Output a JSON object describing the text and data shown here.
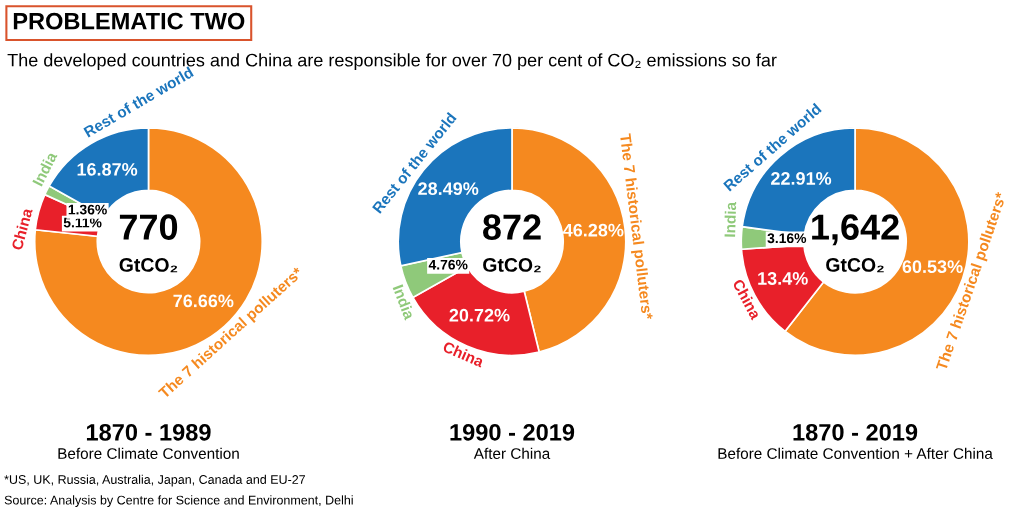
{
  "chart_data": [
    {
      "type": "other",
      "title": "PROBLEMATIC TWO",
      "subtitle": "The developed countries and China are responsible for over 70 per cent of CO₂ emissions so far",
      "annotations": [
        "*US, UK, Russia, Australia, Japan, Canada and EU-27",
        "Source: Analysis by Centre for Science and Environment, Delhi"
      ]
    },
    {
      "type": "donut",
      "title": "1870 - 1989",
      "subtitle": "Before Climate Convention",
      "annotations": [
        "770",
        "GtCO₂"
      ],
      "categories": [
        "The 7 historical polluters*",
        "China",
        "India",
        "Rest of the world"
      ],
      "values": [
        76.66,
        5.11,
        1.36,
        16.87
      ],
      "value_labels": [
        "76.66%",
        "5.11%",
        "1.36%",
        "16.87%"
      ],
      "colors": [
        "#f5891f",
        "#e8202a",
        "#8fc97a",
        "#1b75bc"
      ]
    },
    {
      "type": "donut",
      "title": "1990 - 2019",
      "subtitle": "After China",
      "annotations": [
        "872",
        "GtCO₂"
      ],
      "categories": [
        "The 7 historical polluters*",
        "China",
        "India",
        "Rest of the world"
      ],
      "values": [
        46.28,
        20.72,
        4.76,
        28.49
      ],
      "value_labels": [
        "46.28%",
        "20.72%",
        "4.76%",
        "28.49%"
      ],
      "colors": [
        "#f5891f",
        "#e8202a",
        "#8fc97a",
        "#1b75bc"
      ]
    },
    {
      "type": "donut",
      "title": "1870 - 2019",
      "subtitle": "Before Climate Convention + After China",
      "annotations": [
        "1,642",
        "GtCO₂"
      ],
      "categories": [
        "The 7 historical polluters*",
        "China",
        "India",
        "Rest of the world"
      ],
      "values": [
        60.53,
        13.4,
        3.16,
        22.91
      ],
      "value_labels": [
        "60.53%",
        "13.4%",
        "3.16%",
        "22.91%"
      ],
      "colors": [
        "#f5891f",
        "#e8202a",
        "#8fc97a",
        "#1b75bc"
      ]
    }
  ]
}
